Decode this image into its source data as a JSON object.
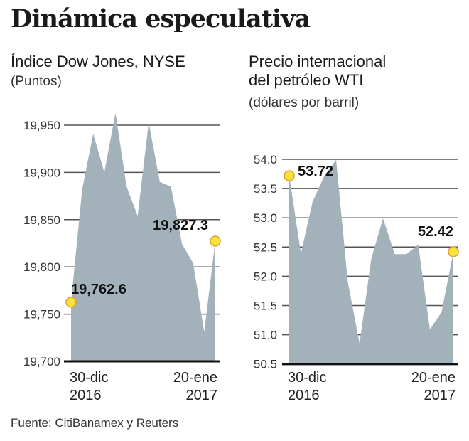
{
  "title": "Dinámica especulativa",
  "source": "Fuente: CitiBanamex y Reuters",
  "colors": {
    "area": "#a3b1bb",
    "marker_fill": "#f7e438",
    "marker_stroke": "#e89a3c",
    "grid": "#555555"
  },
  "chart_data": [
    {
      "type": "area",
      "title": "Índice Dow Jones, NYSE",
      "ylabel": "(Puntos)",
      "ylim": [
        19700,
        19950
      ],
      "y_ticks": [
        "19,700",
        "19,750",
        "19,800",
        "19,850",
        "19,900",
        "19,950"
      ],
      "y_tick_values": [
        19700,
        19750,
        19800,
        19850,
        19900,
        19950
      ],
      "x_start": {
        "label": "30-dic",
        "year": "2016"
      },
      "x_end": {
        "label": "20-ene",
        "year": "2017"
      },
      "values": [
        19762.6,
        19882,
        19941,
        19900,
        19963,
        19885,
        19854,
        19953,
        19890,
        19885,
        19824,
        19804,
        19731,
        19827.3
      ],
      "annotations": [
        {
          "index": 0,
          "label": "19,762.6"
        },
        {
          "index": 13,
          "label": "19,827.3"
        }
      ],
      "grid": true
    },
    {
      "type": "area",
      "title": "Precio internacional del petróleo WTI",
      "title_lines": [
        "Precio internacional",
        "del petróleo WTI"
      ],
      "ylabel": "(dólares por barril)",
      "ylim": [
        50.5,
        54.0
      ],
      "y_ticks": [
        "50.5",
        "51.0",
        "51.5",
        "52.0",
        "52.5",
        "53.0",
        "53.5",
        "54.0"
      ],
      "y_tick_values": [
        50.5,
        51.0,
        51.5,
        52.0,
        52.5,
        53.0,
        53.5,
        54.0
      ],
      "x_start": {
        "label": "30-dic",
        "year": "2016"
      },
      "x_end": {
        "label": "20-ene",
        "year": "2017"
      },
      "values": [
        53.72,
        52.39,
        53.28,
        53.72,
        53.99,
        51.9,
        50.85,
        52.3,
        52.99,
        52.38,
        52.38,
        52.54,
        51.09,
        51.39,
        52.42
      ],
      "annotations": [
        {
          "index": 0,
          "label": "53.72"
        },
        {
          "index": 14,
          "label": "52.42"
        }
      ],
      "grid": true
    }
  ]
}
